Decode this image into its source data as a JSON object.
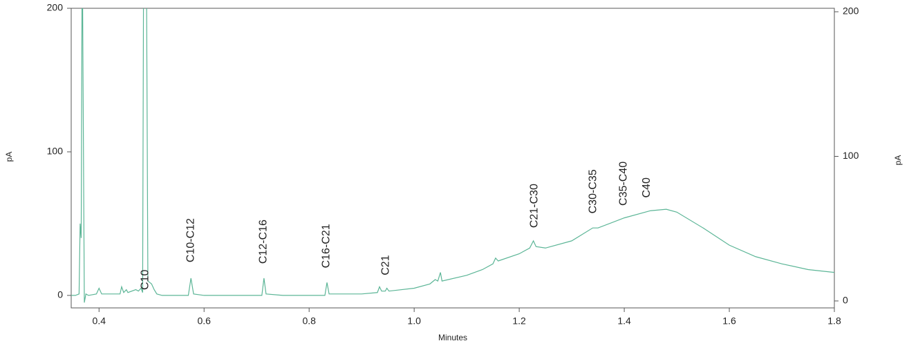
{
  "chart_data": {
    "type": "line",
    "x_label": "Minutes",
    "y_label": "pA",
    "y2_label": "pA",
    "xlim": [
      0.347,
      1.8
    ],
    "xticks": [
      0.4,
      0.6,
      0.8,
      {
        "value": 1,
        "label": "1.0"
      },
      1.2,
      1.4,
      1.6,
      1.8
    ],
    "ylim": [
      -8.7,
      200
    ],
    "yticks": [
      0,
      100,
      200
    ],
    "y2lim": [
      -4.8,
      202.4
    ],
    "y2ticks": [
      0,
      100,
      200
    ],
    "series": [
      {
        "color": "#5bb596",
        "x": [
          0.347,
          0.355,
          0.362,
          0.364,
          0.366,
          0.368,
          0.372,
          0.375,
          0.38,
          0.395,
          0.4,
          0.405,
          0.44,
          0.443,
          0.447,
          0.452,
          0.455,
          0.47,
          0.475,
          0.48,
          0.483,
          0.485,
          0.49,
          0.493,
          0.5,
          0.505,
          0.51,
          0.52,
          0.57,
          0.575,
          0.58,
          0.6,
          0.71,
          0.714,
          0.718,
          0.75,
          0.83,
          0.834,
          0.838,
          0.9,
          0.93,
          0.934,
          0.938,
          0.945,
          0.948,
          0.952,
          1.0,
          1.03,
          1.04,
          1.045,
          1.05,
          1.053,
          1.1,
          1.13,
          1.15,
          1.155,
          1.16,
          1.2,
          1.22,
          1.227,
          1.232,
          1.25,
          1.3,
          1.34,
          1.35,
          1.4,
          1.45,
          1.48,
          1.5,
          1.55,
          1.6,
          1.65,
          1.7,
          1.75,
          1.8
        ],
        "values": [
          0,
          0,
          1,
          50,
          40,
          250,
          -5,
          1,
          0,
          1,
          5,
          1,
          1,
          6,
          2,
          4,
          2,
          4,
          3,
          5,
          2,
          250,
          250,
          10,
          8,
          4,
          1,
          0,
          0,
          12,
          1,
          0,
          0,
          12,
          1,
          0,
          0,
          9,
          1,
          1,
          2,
          6,
          3,
          3,
          5,
          3,
          5,
          8,
          11,
          10,
          16,
          10,
          14,
          18,
          22,
          26,
          24,
          29,
          33,
          38,
          34,
          33,
          38,
          47,
          47,
          54,
          59,
          60,
          58,
          47,
          35,
          27,
          22,
          18,
          16
        ]
      }
    ],
    "annotations": [
      {
        "text": "C10",
        "x": 0.488,
        "y": 3.8
      },
      {
        "text": "C10-C12",
        "x": 0.575,
        "y": 23
      },
      {
        "text": "C12-C16",
        "x": 0.713,
        "y": 22
      },
      {
        "text": "C16-C21",
        "x": 0.833,
        "y": 19
      },
      {
        "text": "C21",
        "x": 0.946,
        "y": 14
      },
      {
        "text": "C21-C30",
        "x": 1.229,
        "y": 47
      },
      {
        "text": "C30-C35",
        "x": 1.341,
        "y": 57
      },
      {
        "text": "C35-C40",
        "x": 1.399,
        "y": 62.5
      },
      {
        "text": "C40",
        "x": 1.443,
        "y": 68
      }
    ]
  }
}
